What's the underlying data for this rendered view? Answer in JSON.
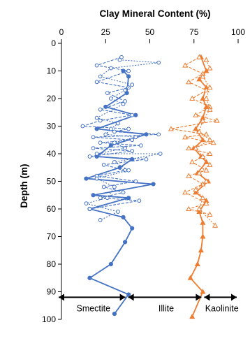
{
  "chart_data": {
    "type": "scatter",
    "title": "Clay Mineral Content (%)",
    "ylabel": "Depth (m)",
    "xlabel": "",
    "xlim": [
      0,
      100
    ],
    "ylim": [
      0,
      100
    ],
    "y_inverted": true,
    "x_axis_position": "top",
    "xticks": [
      "0",
      "25",
      "50",
      "75",
      "100"
    ],
    "yticks": [
      "0",
      "10",
      "20",
      "30",
      "40",
      "50",
      "60",
      "70",
      "80",
      "90",
      "100"
    ],
    "grid": false,
    "zones": [
      {
        "label": "Smectite",
        "range": [
          0,
          37
        ]
      },
      {
        "label": "Illite",
        "range": [
          37,
          80
        ]
      },
      {
        "label": "Kaolinite",
        "range": [
          80,
          100
        ]
      }
    ],
    "zones_depth": 92,
    "series": [
      {
        "color": "#4472c4",
        "marker": "circle",
        "line": "solid",
        "points": [
          [
            35,
            10
          ],
          [
            38,
            12
          ],
          [
            37,
            18
          ],
          [
            25,
            23
          ],
          [
            42,
            26
          ],
          [
            20,
            31
          ],
          [
            48,
            33
          ],
          [
            28,
            37
          ],
          [
            20,
            41
          ],
          [
            40,
            42
          ],
          [
            33,
            45
          ],
          [
            14,
            49
          ],
          [
            52,
            51
          ],
          [
            18,
            55
          ],
          [
            38,
            56
          ],
          [
            16,
            60
          ],
          [
            35,
            63
          ],
          [
            40,
            67
          ],
          [
            36,
            72
          ],
          [
            28,
            80
          ],
          [
            16,
            85
          ],
          [
            38,
            91
          ],
          [
            30,
            98
          ]
        ]
      },
      {
        "color": "#4472c4",
        "marker": "circle",
        "line": "dashed",
        "points": [
          [
            34,
            5
          ],
          [
            20,
            8
          ],
          [
            38,
            10
          ],
          [
            20,
            14
          ],
          [
            38,
            16
          ],
          [
            26,
            18
          ],
          [
            36,
            21
          ],
          [
            22,
            24
          ],
          [
            40,
            26
          ],
          [
            22,
            28
          ],
          [
            12,
            30
          ],
          [
            38,
            31
          ],
          [
            30,
            32
          ],
          [
            55,
            33
          ],
          [
            18,
            34
          ],
          [
            40,
            35
          ],
          [
            22,
            36
          ],
          [
            45,
            37
          ],
          [
            18,
            38
          ],
          [
            40,
            39
          ],
          [
            16,
            41
          ],
          [
            48,
            42
          ],
          [
            24,
            44
          ],
          [
            36,
            46
          ],
          [
            20,
            48
          ],
          [
            42,
            50
          ],
          [
            24,
            52
          ],
          [
            35,
            54
          ],
          [
            22,
            56
          ],
          [
            44,
            57
          ],
          [
            16,
            60
          ]
        ]
      },
      {
        "color": "#4472c4",
        "marker": "circle",
        "line": "dotted",
        "points": [
          [
            33,
            6
          ],
          [
            55,
            7
          ],
          [
            28,
            9
          ],
          [
            22,
            12
          ],
          [
            40,
            15
          ],
          [
            36,
            17
          ],
          [
            28,
            20
          ],
          [
            35,
            22
          ],
          [
            20,
            27
          ],
          [
            32,
            29
          ],
          [
            28,
            31
          ],
          [
            25,
            33
          ],
          [
            42,
            34
          ],
          [
            30,
            36
          ],
          [
            36,
            38
          ],
          [
            20,
            40
          ],
          [
            56,
            40
          ],
          [
            30,
            43
          ],
          [
            38,
            46
          ],
          [
            20,
            49
          ],
          [
            30,
            52
          ],
          [
            26,
            56
          ],
          [
            14,
            58
          ],
          [
            32,
            61
          ],
          [
            22,
            64
          ]
        ]
      },
      {
        "color": "#ed7d31",
        "marker": "triangle",
        "line": "solid",
        "points": [
          [
            79,
            5
          ],
          [
            82,
            10
          ],
          [
            78,
            13
          ],
          [
            82,
            16
          ],
          [
            80,
            20
          ],
          [
            82,
            23
          ],
          [
            80,
            27
          ],
          [
            76,
            31
          ],
          [
            80,
            35
          ],
          [
            75,
            38
          ],
          [
            79,
            41
          ],
          [
            82,
            43
          ],
          [
            77,
            47
          ],
          [
            83,
            50
          ],
          [
            76,
            54
          ],
          [
            82,
            57
          ],
          [
            78,
            61
          ],
          [
            80,
            65
          ],
          [
            80,
            70
          ],
          [
            79,
            75
          ],
          [
            77,
            80
          ],
          [
            73,
            85
          ],
          [
            80,
            90
          ],
          [
            74,
            99
          ]
        ]
      },
      {
        "color": "#ed7d31",
        "marker": "triangle",
        "line": "dashed",
        "points": [
          [
            78,
            5
          ],
          [
            70,
            8
          ],
          [
            80,
            11
          ],
          [
            72,
            14
          ],
          [
            82,
            17
          ],
          [
            74,
            20
          ],
          [
            84,
            23
          ],
          [
            76,
            26
          ],
          [
            88,
            28
          ],
          [
            62,
            31
          ],
          [
            82,
            33
          ],
          [
            70,
            34
          ],
          [
            86,
            36
          ],
          [
            72,
            38
          ],
          [
            84,
            40
          ],
          [
            74,
            43
          ],
          [
            82,
            46
          ],
          [
            72,
            48
          ],
          [
            80,
            51
          ],
          [
            70,
            54
          ],
          [
            82,
            58
          ],
          [
            72,
            60
          ],
          [
            84,
            62
          ]
        ]
      },
      {
        "color": "#ed7d31",
        "marker": "triangle",
        "line": "dotted",
        "points": [
          [
            82,
            6
          ],
          [
            84,
            9
          ],
          [
            80,
            12
          ],
          [
            84,
            16
          ],
          [
            82,
            20
          ],
          [
            84,
            24
          ],
          [
            80,
            28
          ],
          [
            78,
            32
          ],
          [
            84,
            35
          ],
          [
            76,
            38
          ],
          [
            80,
            41
          ],
          [
            84,
            44
          ],
          [
            78,
            47
          ],
          [
            82,
            50
          ],
          [
            76,
            53
          ],
          [
            80,
            56
          ],
          [
            78,
            60
          ],
          [
            87,
            66
          ]
        ]
      }
    ]
  }
}
